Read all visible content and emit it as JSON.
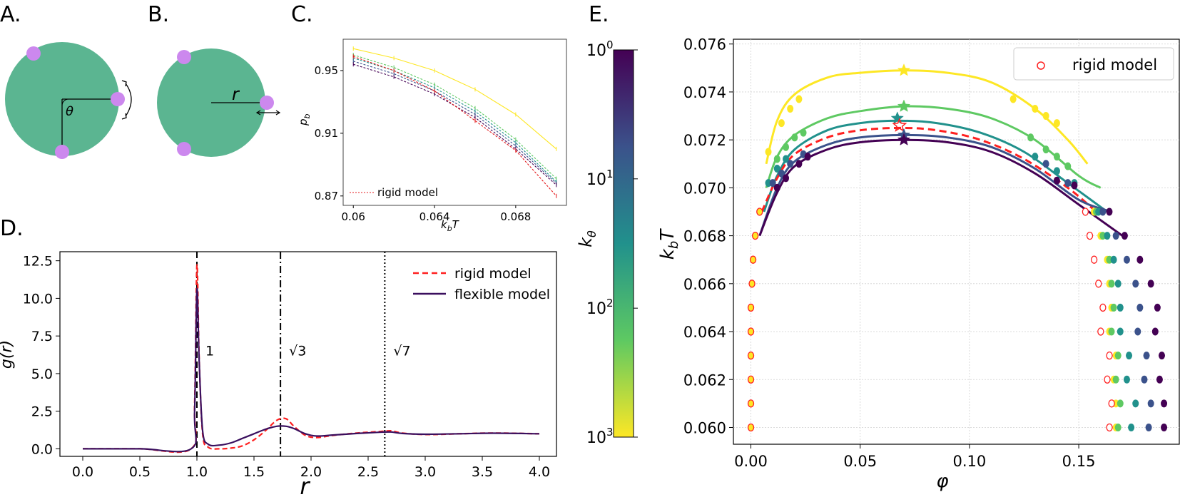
{
  "panels": {
    "a": "A.",
    "b": "B.",
    "c": "C.",
    "d": "D.",
    "e": "E."
  },
  "schematic": {
    "theta_label": "θ",
    "r_label": "r",
    "body_color": "#5bb591",
    "patch_color": "#cc88ee"
  },
  "chart_data": [
    {
      "id": "C",
      "type": "line",
      "xlabel": "k_bT",
      "ylabel": "p_b",
      "xlim": [
        0.0595,
        0.0705
      ],
      "ylim": [
        0.864,
        0.97
      ],
      "xticks": [
        {
          "v": 0.06,
          "label": "0.06"
        },
        {
          "v": 0.064,
          "label": "0.064"
        },
        {
          "v": 0.068,
          "label": "0.068"
        }
      ],
      "yticks": [
        {
          "v": 0.87,
          "label": "0.87"
        },
        {
          "v": 0.91,
          "label": "0.91"
        },
        {
          "v": 0.95,
          "label": "0.95"
        }
      ],
      "x": [
        0.06,
        0.062,
        0.064,
        0.066,
        0.068,
        0.07
      ],
      "legend_rigid": "rigid model",
      "series": [
        {
          "name": "k=1000",
          "color": "#fde725",
          "dash": false,
          "values": [
            0.964,
            0.958,
            0.95,
            0.938,
            0.922,
            0.9
          ]
        },
        {
          "name": "k=300",
          "color": "#5ec962",
          "dash": true,
          "values": [
            0.96,
            0.952,
            0.941,
            0.926,
            0.906,
            0.881
          ]
        },
        {
          "name": "k=100",
          "color": "#21918c",
          "dash": true,
          "values": [
            0.958,
            0.95,
            0.939,
            0.924,
            0.904,
            0.879
          ]
        },
        {
          "name": "k=30",
          "color": "#3b528b",
          "dash": true,
          "values": [
            0.956,
            0.948,
            0.937,
            0.922,
            0.902,
            0.878
          ]
        },
        {
          "name": "k=1",
          "color": "#440154",
          "dash": true,
          "values": [
            0.954,
            0.946,
            0.935,
            0.92,
            0.9,
            0.877
          ]
        },
        {
          "name": "rigid model",
          "color": "#e41a1c",
          "dash": true,
          "values": [
            0.959,
            0.95,
            0.937,
            0.918,
            0.899,
            0.87
          ]
        }
      ]
    },
    {
      "id": "D",
      "type": "line",
      "xlabel": "r",
      "ylabel": "g(r)",
      "xlim": [
        -0.2,
        4.15
      ],
      "ylim": [
        -0.5,
        13.1
      ],
      "xticks": [
        {
          "v": 0.0,
          "label": "0.0"
        },
        {
          "v": 0.5,
          "label": "0.5"
        },
        {
          "v": 1.0,
          "label": "1.0"
        },
        {
          "v": 1.5,
          "label": "1.5"
        },
        {
          "v": 2.0,
          "label": "2.0"
        },
        {
          "v": 2.5,
          "label": "2.5"
        },
        {
          "v": 3.0,
          "label": "3.0"
        },
        {
          "v": 3.5,
          "label": "3.5"
        },
        {
          "v": 4.0,
          "label": "4.0"
        }
      ],
      "yticks": [
        {
          "v": 0.0,
          "label": "0.0"
        },
        {
          "v": 2.5,
          "label": "2.5"
        },
        {
          "v": 5.0,
          "label": "5.0"
        },
        {
          "v": 7.5,
          "label": "7.5"
        },
        {
          "v": 10.0,
          "label": "10.0"
        },
        {
          "v": 12.5,
          "label": "12.5"
        }
      ],
      "vlines": [
        {
          "x": 1.0,
          "label": "1",
          "style": "dashed"
        },
        {
          "x": 1.732,
          "label": "√3",
          "style": "dashdot"
        },
        {
          "x": 2.646,
          "label": "√7",
          "style": "dotted"
        }
      ],
      "legend": [
        "rigid model",
        "flexible model"
      ],
      "series": [
        {
          "name": "rigid model",
          "color": "#ff2020",
          "dash": true,
          "x": [
            0,
            0.5,
            0.95,
            0.98,
            1.0,
            1.02,
            1.05,
            1.1,
            1.2,
            1.3,
            1.4,
            1.5,
            1.6,
            1.7,
            1.78,
            1.85,
            1.95,
            2.05,
            2.2,
            2.4,
            2.6,
            2.7,
            2.8,
            3.0,
            3.3,
            3.6,
            4.0
          ],
          "values": [
            0,
            0,
            0,
            3.0,
            12.2,
            6.0,
            1.0,
            0.1,
            0.0,
            0.05,
            0.2,
            0.6,
            1.2,
            1.9,
            2.0,
            1.5,
            0.9,
            0.75,
            0.9,
            1.05,
            1.15,
            1.2,
            1.05,
            0.95,
            1.0,
            1.05,
            1.0
          ]
        },
        {
          "name": "flexible model",
          "color": "#3a0f5e",
          "dash": false,
          "x": [
            0,
            0.5,
            0.95,
            0.98,
            1.0,
            1.02,
            1.05,
            1.1,
            1.2,
            1.3,
            1.4,
            1.5,
            1.6,
            1.7,
            1.78,
            1.85,
            1.95,
            2.05,
            2.2,
            2.4,
            2.6,
            2.7,
            2.8,
            3.0,
            3.3,
            3.6,
            4.0
          ],
          "values": [
            0,
            0,
            0,
            2.5,
            10.6,
            5.8,
            1.2,
            0.3,
            0.25,
            0.4,
            0.7,
            1.0,
            1.3,
            1.5,
            1.5,
            1.35,
            1.0,
            0.85,
            0.92,
            1.02,
            1.1,
            1.12,
            1.02,
            0.97,
            1.0,
            1.04,
            1.0
          ]
        }
      ]
    },
    {
      "id": "colorbar",
      "type": "heatmap",
      "label": "k_θ",
      "scale": "log",
      "colors": [
        "#440154",
        "#3b528b",
        "#21918c",
        "#5ec962",
        "#fde725"
      ],
      "ticks": [
        {
          "frac": 0.0,
          "base": "10",
          "exp": "0"
        },
        {
          "frac": 0.333,
          "base": "10",
          "exp": "1"
        },
        {
          "frac": 0.667,
          "base": "10",
          "exp": "2"
        },
        {
          "frac": 1.0,
          "base": "10",
          "exp": "3"
        }
      ]
    },
    {
      "id": "E",
      "type": "scatter",
      "xlabel": "φ",
      "ylabel": "k_bT",
      "xlim": [
        -0.008,
        0.196
      ],
      "ylim": [
        0.0593,
        0.0762
      ],
      "xticks": [
        {
          "v": 0.0,
          "label": "0.00"
        },
        {
          "v": 0.05,
          "label": "0.05"
        },
        {
          "v": 0.1,
          "label": "0.10"
        },
        {
          "v": 0.15,
          "label": "0.15"
        }
      ],
      "yticks": [
        {
          "v": 0.06,
          "label": "0.060"
        },
        {
          "v": 0.062,
          "label": "0.062"
        },
        {
          "v": 0.064,
          "label": "0.064"
        },
        {
          "v": 0.066,
          "label": "0.066"
        },
        {
          "v": 0.068,
          "label": "0.068"
        },
        {
          "v": 0.07,
          "label": "0.070"
        },
        {
          "v": 0.072,
          "label": "0.072"
        },
        {
          "v": 0.074,
          "label": "0.074"
        },
        {
          "v": 0.076,
          "label": "0.076"
        }
      ],
      "legend": "rigid model",
      "curves": [
        {
          "color": "#fde725",
          "dash": false,
          "crit": [
            0.07,
            0.0749
          ],
          "x": [
            0.007,
            0.012,
            0.02,
            0.035,
            0.05,
            0.07,
            0.09,
            0.11,
            0.13,
            0.145,
            0.154
          ],
          "values": [
            0.071,
            0.0728,
            0.0739,
            0.0746,
            0.0748,
            0.0749,
            0.0748,
            0.0744,
            0.0733,
            0.072,
            0.071
          ]
        },
        {
          "color": "#5ec962",
          "dash": false,
          "crit": [
            0.07,
            0.0734
          ],
          "x": [
            0.007,
            0.012,
            0.02,
            0.035,
            0.05,
            0.07,
            0.09,
            0.11,
            0.13,
            0.15,
            0.16
          ],
          "values": [
            0.07,
            0.0713,
            0.0722,
            0.0729,
            0.0732,
            0.0734,
            0.0733,
            0.0729,
            0.072,
            0.0705,
            0.07
          ]
        },
        {
          "color": "#21918c",
          "dash": false,
          "crit": [
            0.067,
            0.0729
          ],
          "x": [
            0.006,
            0.012,
            0.02,
            0.035,
            0.05,
            0.067,
            0.085,
            0.105,
            0.125,
            0.145,
            0.163
          ],
          "values": [
            0.069,
            0.0705,
            0.0716,
            0.0724,
            0.0727,
            0.0728,
            0.0727,
            0.0723,
            0.0715,
            0.0702,
            0.069
          ]
        },
        {
          "color": "#ff2020",
          "dash": true,
          "crit": [
            0.068,
            0.0726
          ],
          "x": [
            0.005,
            0.012,
            0.02,
            0.035,
            0.05,
            0.068,
            0.085,
            0.105,
            0.125,
            0.145,
            0.158
          ],
          "values": [
            0.069,
            0.0704,
            0.0714,
            0.0721,
            0.0724,
            0.0725,
            0.0724,
            0.072,
            0.0712,
            0.07,
            0.069
          ]
        },
        {
          "color": "#3b528b",
          "dash": false,
          "crit": [
            0.07,
            0.0722
          ],
          "x": [
            0.004,
            0.012,
            0.02,
            0.035,
            0.05,
            0.07,
            0.09,
            0.11,
            0.13,
            0.15,
            0.165
          ],
          "values": [
            0.068,
            0.07,
            0.0711,
            0.0718,
            0.0721,
            0.0722,
            0.0721,
            0.0717,
            0.0708,
            0.0695,
            0.069
          ]
        },
        {
          "color": "#440154",
          "dash": false,
          "crit": [
            0.07,
            0.072
          ],
          "x": [
            0.004,
            0.012,
            0.02,
            0.035,
            0.05,
            0.07,
            0.09,
            0.11,
            0.13,
            0.15,
            0.17
          ],
          "values": [
            0.068,
            0.0698,
            0.0709,
            0.0716,
            0.0719,
            0.072,
            0.0719,
            0.0715,
            0.0706,
            0.0693,
            0.068
          ]
        }
      ],
      "points": {
        "T": [
          0.06,
          0.061,
          0.062,
          0.063,
          0.064,
          0.065,
          0.066,
          0.067,
          0.068,
          0.069
        ],
        "rigid_gas": [
          0.0,
          0.0,
          0.0,
          0.0,
          0.0,
          0.0,
          0.0005,
          0.001,
          0.002,
          0.004
        ],
        "rigid_liq": [
          0.166,
          0.167,
          0.165,
          0.166,
          0.162,
          0.163,
          0.161,
          0.159,
          0.157,
          0.155
        ],
        "liquid": [
          {
            "color": "#fde725",
            "x": [
              0.167,
              0.167,
              0.166,
              0.167,
              0.164,
              0.165,
              0.164,
              0.163,
              0.16,
              0.157
            ]
          },
          {
            "color": "#5ec962",
            "x": [
              0.168,
              0.169,
              0.167,
              0.168,
              0.165,
              0.166,
              0.165,
              0.164,
              0.161,
              0.158
            ]
          },
          {
            "color": "#21918c",
            "x": [
              0.174,
              0.176,
              0.172,
              0.173,
              0.169,
              0.169,
              0.168,
              0.166,
              0.163,
              0.159
            ]
          },
          {
            "color": "#3b528b",
            "x": [
              0.182,
              0.183,
              0.18,
              0.181,
              0.177,
              0.178,
              0.176,
              0.172,
              0.167,
              0.161
            ]
          },
          {
            "color": "#440154",
            "x": [
              0.189,
              0.189,
              0.187,
              0.188,
              0.185,
              0.186,
              0.183,
              0.178,
              0.171,
              0.164
            ]
          }
        ],
        "curve_dots": [
          {
            "color": "#fde725",
            "pts": [
              [
                0.008,
                0.0715
              ],
              [
                0.014,
                0.0727
              ],
              [
                0.018,
                0.0733
              ],
              [
                0.022,
                0.0737
              ],
              [
                0.12,
                0.0737
              ],
              [
                0.13,
                0.0733
              ],
              [
                0.135,
                0.073
              ],
              [
                0.14,
                0.0727
              ]
            ]
          },
          {
            "color": "#5ec962",
            "pts": [
              [
                0.012,
                0.0712
              ],
              [
                0.016,
                0.0717
              ],
              [
                0.02,
                0.0721
              ],
              [
                0.024,
                0.0723
              ],
              [
                0.128,
                0.0721
              ],
              [
                0.135,
                0.0716
              ],
              [
                0.14,
                0.0713
              ],
              [
                0.145,
                0.0709
              ]
            ]
          },
          {
            "color": "#21918c",
            "pts": [
              [
                0.008,
                0.0702
              ],
              [
                0.012,
                0.0708
              ],
              [
                0.016,
                0.0712
              ],
              [
                0.13,
                0.0713
              ],
              [
                0.14,
                0.0707
              ],
              [
                0.148,
                0.0702
              ]
            ]
          },
          {
            "color": "#3b528b",
            "pts": [
              [
                0.01,
                0.0702
              ],
              [
                0.014,
                0.0706
              ],
              [
                0.018,
                0.071
              ],
              [
                0.024,
                0.0714
              ],
              [
                0.135,
                0.071
              ],
              [
                0.145,
                0.0702
              ]
            ]
          },
          {
            "color": "#440154",
            "pts": [
              [
                0.012,
                0.07
              ],
              [
                0.016,
                0.0704
              ],
              [
                0.022,
                0.071
              ],
              [
                0.026,
                0.0713
              ],
              [
                0.14,
                0.0703
              ],
              [
                0.148,
                0.0701
              ]
            ]
          }
        ]
      }
    }
  ]
}
